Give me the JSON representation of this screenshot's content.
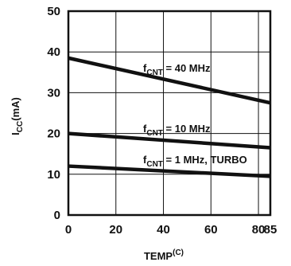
{
  "chart_data": {
    "type": "line",
    "x_ticks": [
      "0",
      "20",
      "40",
      "60",
      "80",
      "85"
    ],
    "y_ticks": [
      "0",
      "10",
      "20",
      "30",
      "40",
      "50"
    ],
    "xlim": [
      0,
      85
    ],
    "ylim": [
      0,
      50
    ],
    "grid": true,
    "xlabel": {
      "main": "TEMP",
      "unit": "(C)"
    },
    "ylabel": {
      "main": "I",
      "sub": "CC",
      "unit": "(mA)"
    },
    "series": [
      {
        "name": {
          "main": "f",
          "sub": "CNT",
          "rest": " = 40 MHz"
        },
        "x": [
          0,
          85
        ],
        "y": [
          38.5,
          27.5
        ]
      },
      {
        "name": {
          "main": "f",
          "sub": "CNT",
          "rest": " = 10 MHz"
        },
        "x": [
          0,
          85
        ],
        "y": [
          20.0,
          16.5
        ]
      },
      {
        "name": {
          "main": "f",
          "sub": "CNT",
          "rest": " = 1 MHz, TURBO"
        },
        "x": [
          0,
          85
        ],
        "y": [
          12.0,
          9.5
        ]
      }
    ],
    "colors": {
      "line": "#111111",
      "grid": "#111111",
      "background": "#ffffff"
    }
  }
}
